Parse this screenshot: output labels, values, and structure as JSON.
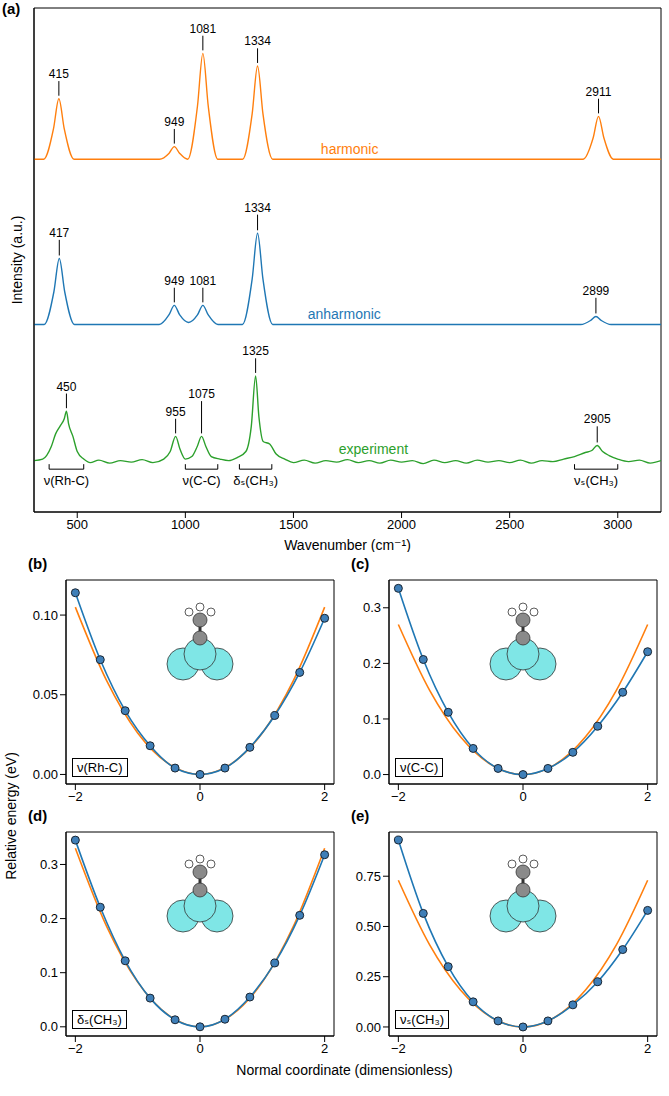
{
  "chart_data": [
    {
      "panel": "(a)",
      "type": "line",
      "xlabel": "Wavenumber (cm⁻¹)",
      "ylabel": "Intensity (a.u.)",
      "xlim": [
        300,
        3200
      ],
      "xticks": [
        500,
        1000,
        1500,
        2000,
        2500,
        3000
      ],
      "ylim": [
        0,
        10
      ],
      "tick_labels": "x",
      "grid": false,
      "series": [
        {
          "name": "harmonic",
          "color": "#ff7f0e",
          "name_x": 1760,
          "name_y": 7.05,
          "x": [
            300,
            345,
            390,
            415,
            440,
            485,
            880,
            925,
            949,
            973,
            1011,
            1056,
            1081,
            1106,
            1150,
            1265,
            1309,
            1334,
            1359,
            1404,
            2840,
            2886,
            2911,
            2936,
            2980,
            3200
          ],
          "values": [
            7,
            7,
            7.6,
            8.2,
            7.6,
            7,
            7,
            7.12,
            7.25,
            7.12,
            7,
            8.05,
            9.1,
            8.05,
            7,
            7,
            7.9,
            8.85,
            7.9,
            7,
            7,
            7.42,
            7.85,
            7.42,
            7,
            7
          ],
          "annotations": [
            {
              "text": "415",
              "x": 415,
              "y": 8.55
            },
            {
              "text": "949",
              "x": 949,
              "y": 7.6
            },
            {
              "text": "1081",
              "x": 1081,
              "y": 9.45
            },
            {
              "text": "1334",
              "x": 1334,
              "y": 9.2
            },
            {
              "text": "2911",
              "x": 2911,
              "y": 8.2
            }
          ]
        },
        {
          "name": "anharmonic",
          "color": "#1f77b4",
          "name_x": 1735,
          "name_y": 3.77,
          "x": [
            300,
            347,
            392,
            417,
            442,
            487,
            879,
            924,
            949,
            974,
            1015,
            1056,
            1081,
            1106,
            1151,
            1264,
            1309,
            1334,
            1359,
            1404,
            2829,
            2874,
            2899,
            2924,
            2969,
            3200
          ],
          "values": [
            3.72,
            3.72,
            4.37,
            5.03,
            4.37,
            3.72,
            3.72,
            3.91,
            4.1,
            3.91,
            3.76,
            3.91,
            4.1,
            3.91,
            3.72,
            3.72,
            4.62,
            5.53,
            4.62,
            3.72,
            3.72,
            3.8,
            3.88,
            3.8,
            3.72,
            3.72
          ],
          "annotations": [
            {
              "text": "417",
              "x": 417,
              "y": 5.4
            },
            {
              "text": "949",
              "x": 949,
              "y": 4.45
            },
            {
              "text": "1081",
              "x": 1081,
              "y": 4.45
            },
            {
              "text": "1334",
              "x": 1334,
              "y": 5.9
            },
            {
              "text": "2899",
              "x": 2899,
              "y": 4.25
            }
          ]
        },
        {
          "name": "experiment",
          "color": "#2ca02c",
          "name_x": 1870,
          "name_y": 1.1,
          "x": [
            300,
            340,
            380,
            400,
            420,
            440,
            450,
            460,
            480,
            500,
            530,
            560,
            600,
            650,
            700,
            750,
            800,
            850,
            900,
            930,
            955,
            975,
            1000,
            1030,
            1055,
            1075,
            1095,
            1120,
            1160,
            1200,
            1240,
            1280,
            1305,
            1325,
            1340,
            1360,
            1390,
            1420,
            1460,
            1500,
            1550,
            1600,
            1650,
            1700,
            1750,
            1800,
            1850,
            1900,
            1950,
            2000,
            2050,
            2100,
            2150,
            2200,
            2250,
            2300,
            2350,
            2400,
            2450,
            2500,
            2550,
            2600,
            2650,
            2700,
            2750,
            2800,
            2850,
            2880,
            2905,
            2930,
            2960,
            3000,
            3050,
            3100,
            3150,
            3200
          ],
          "values": [
            1.02,
            1.05,
            1.3,
            1.55,
            1.7,
            1.85,
            2.0,
            1.75,
            1.5,
            1.2,
            1.05,
            0.98,
            1.03,
            0.97,
            1.02,
            0.99,
            1.04,
            0.98,
            1.05,
            1.2,
            1.5,
            1.25,
            1.05,
            1.1,
            1.3,
            1.5,
            1.3,
            1.1,
            1.05,
            1.02,
            1.08,
            1.2,
            1.7,
            2.7,
            1.9,
            1.4,
            1.35,
            1.15,
            1.05,
            0.98,
            1.03,
            0.97,
            1.02,
            0.99,
            1.04,
            0.98,
            1.02,
            0.97,
            1.03,
            0.99,
            1.02,
            0.96,
            1.03,
            0.98,
            1.02,
            0.97,
            1.03,
            0.99,
            1.02,
            0.98,
            1.03,
            0.97,
            1.02,
            1.0,
            1.05,
            1.1,
            1.18,
            1.22,
            1.32,
            1.2,
            1.12,
            1.05,
            1.0,
            1.03,
            0.97,
            1.02
          ],
          "annotations": [
            {
              "text": "450",
              "x": 450,
              "y": 2.35
            },
            {
              "text": "955",
              "x": 955,
              "y": 1.85
            },
            {
              "text": "1075",
              "x": 1075,
              "y": 2.2
            },
            {
              "text": "1325",
              "x": 1325,
              "y": 3.05
            },
            {
              "text": "2905",
              "x": 2905,
              "y": 1.7
            }
          ]
        }
      ],
      "bands": [
        {
          "label": "ν(Rh-C)",
          "from": 370,
          "to": 530,
          "y": 0.85
        },
        {
          "label": "ν(C-C)",
          "from": 1000,
          "to": 1150,
          "y": 0.85
        },
        {
          "label": "δₛ(CH₃)",
          "from": 1250,
          "to": 1400,
          "y": 0.85
        },
        {
          "label": "νₛ(CH₃)",
          "from": 2800,
          "to": 3000,
          "y": 0.85
        }
      ]
    },
    {
      "panel": "(b)",
      "type": "line",
      "inset_label": "ν(Rh-C)",
      "xlim": [
        -2.15,
        2.15
      ],
      "xticks": [
        {
          "value": -2,
          "label": "−2"
        },
        0,
        2
      ],
      "ylim": [
        -0.006,
        0.122
      ],
      "yticks": [
        {
          "value": 0,
          "label": "0.00"
        },
        0.05,
        {
          "value": 0.1,
          "label": "0.10"
        }
      ],
      "series": [
        {
          "color": "#ff7f0e",
          "x": [
            -2,
            -1.5,
            -1,
            -0.5,
            0,
            0.5,
            1,
            1.5,
            2
          ],
          "values": [
            0.105,
            0.059,
            0.026,
            0.0066,
            0,
            0.0066,
            0.026,
            0.059,
            0.105
          ]
        },
        {
          "color": "#1f77b4",
          "marker": "o",
          "x": [
            -2,
            -1.6,
            -1.2,
            -0.8,
            -0.4,
            0,
            0.4,
            0.8,
            1.2,
            1.6,
            2
          ],
          "values": [
            0.114,
            0.072,
            0.04,
            0.018,
            0.004,
            0,
            0.004,
            0.017,
            0.037,
            0.064,
            0.098
          ]
        }
      ]
    },
    {
      "panel": "(c)",
      "type": "line",
      "inset_label": "ν(C-C)",
      "xlim": [
        -2.15,
        2.15
      ],
      "xticks": [
        {
          "value": -2,
          "label": "−2"
        },
        0,
        2
      ],
      "ylim": [
        -0.017,
        0.35
      ],
      "yticks": [
        {
          "value": 0,
          "label": "0.0"
        },
        0.1,
        0.2,
        0.3
      ],
      "series": [
        {
          "color": "#ff7f0e",
          "x": [
            -2,
            -1.5,
            -1,
            -0.5,
            0,
            0.5,
            1,
            1.5,
            2
          ],
          "values": [
            0.27,
            0.152,
            0.0675,
            0.017,
            0,
            0.017,
            0.0675,
            0.152,
            0.27
          ]
        },
        {
          "color": "#1f77b4",
          "marker": "o",
          "x": [
            -2,
            -1.6,
            -1.2,
            -0.8,
            -0.4,
            0,
            0.4,
            0.8,
            1.2,
            1.6,
            2
          ],
          "values": [
            0.335,
            0.207,
            0.112,
            0.047,
            0.011,
            0,
            0.011,
            0.04,
            0.087,
            0.148,
            0.221
          ]
        }
      ]
    },
    {
      "panel": "(d)",
      "type": "line",
      "inset_label": "δₛ(CH₃)",
      "xlim": [
        -2.15,
        2.15
      ],
      "xticks": [
        {
          "value": -2,
          "label": "−2"
        },
        0,
        2
      ],
      "ylim": [
        -0.017,
        0.36
      ],
      "yticks": [
        {
          "value": 0,
          "label": "0.0"
        },
        0.1,
        0.2,
        0.3
      ],
      "series": [
        {
          "color": "#ff7f0e",
          "x": [
            -2,
            -1.5,
            -1,
            -0.5,
            0,
            0.5,
            1,
            1.5,
            2
          ],
          "values": [
            0.33,
            0.186,
            0.0825,
            0.021,
            0,
            0.021,
            0.0825,
            0.186,
            0.33
          ]
        },
        {
          "color": "#1f77b4",
          "marker": "o",
          "x": [
            -2,
            -1.6,
            -1.2,
            -0.8,
            -0.4,
            0,
            0.4,
            0.8,
            1.2,
            1.6,
            2
          ],
          "values": [
            0.345,
            0.221,
            0.122,
            0.053,
            0.013,
            0,
            0.014,
            0.055,
            0.118,
            0.206,
            0.318
          ]
        }
      ]
    },
    {
      "panel": "(e)",
      "type": "line",
      "inset_label": "νₛ(CH₃)",
      "xlim": [
        -2.15,
        2.15
      ],
      "xticks": [
        {
          "value": -2,
          "label": "−2"
        },
        0,
        2
      ],
      "ylim": [
        -0.045,
        0.97
      ],
      "yticks": [
        {
          "value": 0,
          "label": "0.00"
        },
        0.25,
        {
          "value": 0.5,
          "label": "0.50"
        },
        0.75
      ],
      "series": [
        {
          "color": "#ff7f0e",
          "x": [
            -2,
            -1.5,
            -1,
            -0.5,
            0,
            0.5,
            1,
            1.5,
            2
          ],
          "values": [
            0.73,
            0.41,
            0.1825,
            0.046,
            0,
            0.046,
            0.1825,
            0.41,
            0.73
          ]
        },
        {
          "color": "#1f77b4",
          "marker": "o",
          "x": [
            -2,
            -1.6,
            -1.2,
            -0.8,
            -0.4,
            0,
            0.4,
            0.8,
            1.2,
            1.6,
            2
          ],
          "values": [
            0.93,
            0.565,
            0.3,
            0.125,
            0.03,
            0,
            0.03,
            0.11,
            0.225,
            0.385,
            0.58
          ]
        }
      ]
    }
  ],
  "shared_xlabel": "Normal coordinate (dimensionless)",
  "shared_ylabel": "Relative energy (eV)"
}
